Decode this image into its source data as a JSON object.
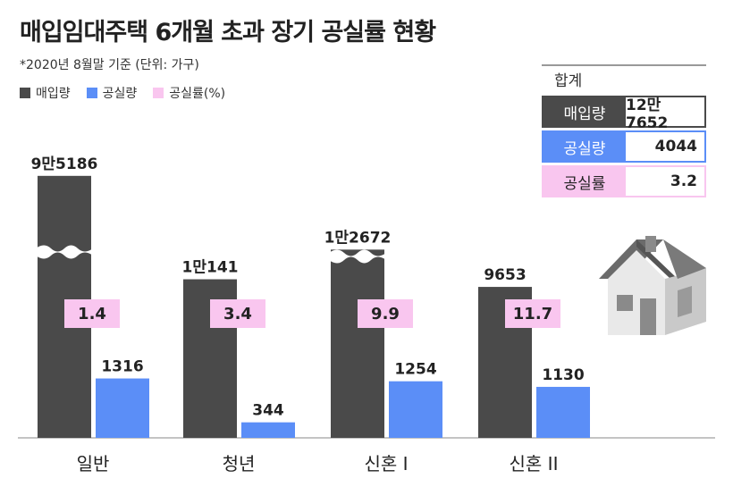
{
  "title": "매입임대주택 6개월 초과 장기 공실률 현황",
  "subtitle": "*2020년 8월말 기준  (단위: 가구)",
  "legend": [
    {
      "label": "매입량",
      "color": "#4a4a4a"
    },
    {
      "label": "공실량",
      "color": "#5b8ef7"
    },
    {
      "label": "공실률(%)",
      "color": "#f9c6ef"
    }
  ],
  "summary": {
    "title": "합계",
    "rows": [
      {
        "label": "매입량",
        "value": "12만7652",
        "label_bg": "#4a4a4a",
        "label_color": "#ffffff",
        "border": "#4a4a4a"
      },
      {
        "label": "공실량",
        "value": "4044",
        "label_bg": "#5b8ef7",
        "label_color": "#ffffff",
        "border": "#5b8ef7"
      },
      {
        "label": "공실률",
        "value": "3.2",
        "label_bg": "#f9c6ef",
        "label_color": "#222222",
        "border": "#f9c6ef"
      }
    ]
  },
  "chart_data": {
    "type": "bar",
    "title": "매입임대주택 6개월 초과 장기 공실률 현황",
    "categories": [
      "일반",
      "청년",
      "신혼 I",
      "신혼 II"
    ],
    "series": [
      {
        "name": "매입량",
        "values": [
          95186,
          10141,
          12672,
          9653
        ],
        "labels": [
          "9만5186",
          "1만141",
          "1만2672",
          "9653"
        ],
        "color": "#4a4a4a"
      },
      {
        "name": "공실량",
        "values": [
          1316,
          344,
          1254,
          1130
        ],
        "labels": [
          "1316",
          "344",
          "1254",
          "1130"
        ],
        "color": "#5b8ef7"
      },
      {
        "name": "공실률(%)",
        "values": [
          1.4,
          3.4,
          9.9,
          11.7
        ],
        "labels": [
          "1.4",
          "3.4",
          "9.9",
          "11.7"
        ],
        "color": "#f9c6ef"
      }
    ],
    "axis_break": true
  }
}
